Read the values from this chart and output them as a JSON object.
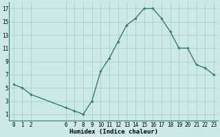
{
  "x": [
    0,
    1,
    2,
    6,
    7,
    8,
    9,
    10,
    11,
    12,
    13,
    14,
    15,
    16,
    17,
    18,
    19,
    20,
    21,
    22,
    23
  ],
  "y": [
    5.5,
    5.0,
    4.0,
    2.0,
    1.5,
    1.0,
    3.0,
    7.5,
    9.5,
    12.0,
    14.5,
    15.5,
    17.0,
    17.0,
    15.5,
    13.5,
    11.0,
    11.0,
    8.5,
    8.0,
    7.0
  ],
  "line_color": "#2e7d6e",
  "marker_color": "#2e7d6e",
  "bg_color": "#cde8e8",
  "grid_color": "#aacece",
  "xlabel": "Humidex (Indice chaleur)",
  "xlim": [
    -0.5,
    23.5
  ],
  "ylim": [
    0,
    18
  ],
  "xticks": [
    0,
    1,
    2,
    6,
    7,
    8,
    9,
    10,
    11,
    12,
    13,
    14,
    15,
    16,
    17,
    18,
    19,
    20,
    21,
    22,
    23
  ],
  "yticks": [
    1,
    3,
    5,
    7,
    9,
    11,
    13,
    15,
    17
  ],
  "tick_fontsize": 5.5,
  "xlabel_fontsize": 6.5
}
